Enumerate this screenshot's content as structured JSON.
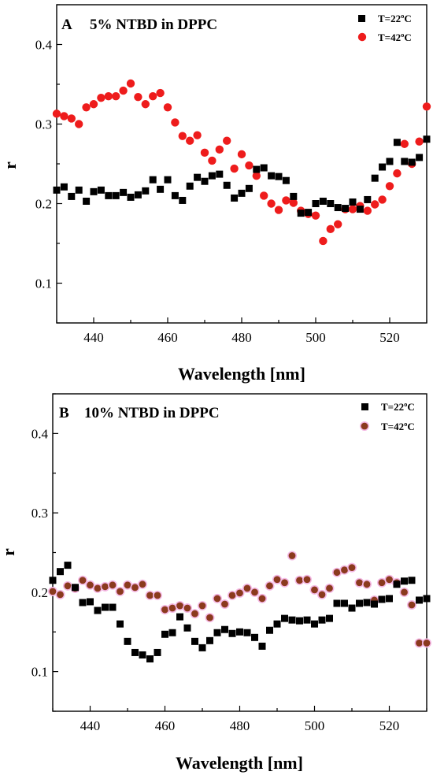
{
  "chart_data": [
    {
      "type": "scatter",
      "panel_letter": "A",
      "title": "5% NTBD in DPPC",
      "xlabel": "Wavelength [nm]",
      "ylabel": "r",
      "xlim": [
        430,
        530
      ],
      "ylim": [
        0.05,
        0.45
      ],
      "xticks": [
        440,
        460,
        480,
        500,
        520
      ],
      "yticks": [
        0.1,
        0.2,
        0.3,
        0.4
      ],
      "grid": false,
      "legend_position": "top-right",
      "series": [
        {
          "name": "T=22ºC",
          "marker": "square",
          "color": "#000000",
          "x": [
            430,
            432,
            434,
            436,
            438,
            440,
            442,
            444,
            446,
            448,
            450,
            452,
            454,
            456,
            458,
            460,
            462,
            464,
            466,
            468,
            470,
            472,
            474,
            476,
            478,
            480,
            482,
            484,
            486,
            488,
            490,
            492,
            494,
            496,
            498,
            500,
            502,
            504,
            506,
            508,
            510,
            512,
            514,
            516,
            518,
            520,
            522,
            524,
            526,
            528,
            530
          ],
          "y": [
            0.217,
            0.221,
            0.209,
            0.217,
            0.203,
            0.215,
            0.217,
            0.21,
            0.21,
            0.214,
            0.208,
            0.211,
            0.216,
            0.23,
            0.218,
            0.23,
            0.21,
            0.204,
            0.222,
            0.233,
            0.228,
            0.235,
            0.237,
            0.223,
            0.207,
            0.213,
            0.219,
            0.243,
            0.245,
            0.235,
            0.234,
            0.229,
            0.209,
            0.188,
            0.189,
            0.2,
            0.203,
            0.2,
            0.195,
            0.194,
            0.202,
            0.193,
            0.205,
            0.232,
            0.246,
            0.253,
            0.277,
            0.253,
            0.252,
            0.258,
            0.281
          ]
        },
        {
          "name": "T=42ºC",
          "marker": "circle",
          "color": "#ee1c1c",
          "x": [
            430,
            432,
            434,
            436,
            438,
            440,
            442,
            444,
            446,
            448,
            450,
            452,
            454,
            456,
            458,
            460,
            462,
            464,
            466,
            468,
            470,
            472,
            474,
            476,
            478,
            480,
            482,
            484,
            486,
            488,
            490,
            492,
            494,
            496,
            498,
            500,
            502,
            504,
            506,
            508,
            510,
            512,
            514,
            516,
            518,
            520,
            522,
            524,
            526,
            528,
            530
          ],
          "y": [
            0.313,
            0.31,
            0.307,
            0.3,
            0.321,
            0.325,
            0.333,
            0.335,
            0.335,
            0.342,
            0.351,
            0.334,
            0.325,
            0.335,
            0.339,
            0.321,
            0.302,
            0.285,
            0.279,
            0.286,
            0.264,
            0.254,
            0.268,
            0.279,
            0.244,
            0.262,
            0.248,
            0.235,
            0.21,
            0.2,
            0.192,
            0.204,
            0.201,
            0.191,
            0.187,
            0.185,
            0.153,
            0.168,
            0.174,
            0.193,
            0.193,
            0.197,
            0.191,
            0.199,
            0.205,
            0.222,
            0.238,
            0.275,
            0.25,
            0.278,
            0.322
          ]
        }
      ]
    },
    {
      "type": "scatter",
      "panel_letter": "B",
      "title": "10% NTBD in DPPC",
      "xlabel": "Wavelength [nm]",
      "ylabel": "r",
      "xlim": [
        430,
        530
      ],
      "ylim": [
        0.05,
        0.45
      ],
      "xticks": [
        440,
        460,
        480,
        500,
        520
      ],
      "yticks": [
        0.1,
        0.2,
        0.3,
        0.4
      ],
      "grid": false,
      "legend_position": "top-right",
      "series": [
        {
          "name": "T=22ºC",
          "marker": "square",
          "color": "#000000",
          "x": [
            430,
            432,
            434,
            436,
            438,
            440,
            442,
            444,
            446,
            448,
            450,
            452,
            454,
            456,
            458,
            460,
            462,
            464,
            466,
            468,
            470,
            472,
            474,
            476,
            478,
            480,
            482,
            484,
            486,
            488,
            490,
            492,
            494,
            496,
            498,
            500,
            502,
            504,
            506,
            508,
            510,
            512,
            514,
            516,
            518,
            520,
            522,
            524,
            526,
            528,
            530
          ],
          "y": [
            0.215,
            0.226,
            0.234,
            0.206,
            0.187,
            0.188,
            0.177,
            0.181,
            0.181,
            0.16,
            0.138,
            0.124,
            0.121,
            0.116,
            0.124,
            0.147,
            0.149,
            0.169,
            0.155,
            0.138,
            0.13,
            0.139,
            0.149,
            0.153,
            0.148,
            0.15,
            0.149,
            0.143,
            0.132,
            0.152,
            0.16,
            0.167,
            0.165,
            0.164,
            0.165,
            0.16,
            0.165,
            0.167,
            0.186,
            0.186,
            0.18,
            0.186,
            0.187,
            0.185,
            0.191,
            0.192,
            0.21,
            0.214,
            0.215,
            0.19,
            0.192
          ]
        },
        {
          "name": "T=42ºC",
          "marker": "circle",
          "color": "#8b3a1e",
          "x": [
            430,
            432,
            434,
            436,
            438,
            440,
            442,
            444,
            446,
            448,
            450,
            452,
            454,
            456,
            458,
            460,
            462,
            464,
            466,
            468,
            470,
            472,
            474,
            476,
            478,
            480,
            482,
            484,
            486,
            488,
            490,
            492,
            494,
            496,
            498,
            500,
            502,
            504,
            506,
            508,
            510,
            512,
            514,
            516,
            518,
            520,
            522,
            524,
            526,
            528,
            530
          ],
          "y": [
            0.201,
            0.197,
            0.208,
            0.205,
            0.215,
            0.209,
            0.205,
            0.207,
            0.209,
            0.201,
            0.209,
            0.206,
            0.21,
            0.196,
            0.196,
            0.178,
            0.18,
            0.183,
            0.18,
            0.173,
            0.183,
            0.168,
            0.192,
            0.185,
            0.196,
            0.199,
            0.205,
            0.2,
            0.192,
            0.208,
            0.216,
            0.212,
            0.246,
            0.215,
            0.216,
            0.203,
            0.197,
            0.205,
            0.225,
            0.228,
            0.231,
            0.212,
            0.21,
            0.19,
            0.212,
            0.216,
            0.212,
            0.2,
            0.184,
            0.136,
            0.136
          ]
        }
      ]
    }
  ]
}
